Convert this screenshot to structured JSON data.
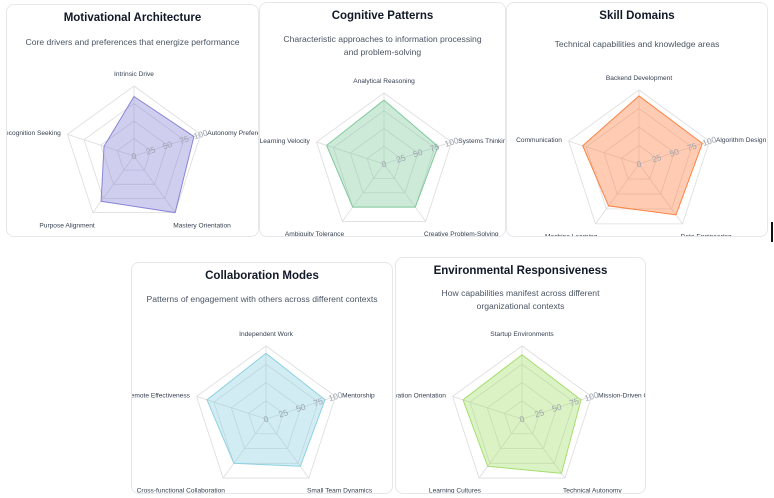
{
  "chart_data": [
    {
      "type": "radar",
      "title": "Motivational Architecture",
      "subtitle": "Core drivers and preferences that energize performance",
      "categories": [
        "Intrinsic Drive",
        "Autonomy Preference",
        "Mastery Orientation",
        "Purpose Alignment",
        "Recognition Seeking"
      ],
      "values": [
        85,
        90,
        100,
        80,
        45
      ],
      "radial_ticks": [
        "0",
        "25",
        "50",
        "75",
        "100"
      ],
      "range": [
        0,
        100
      ],
      "color": "#8884d8"
    },
    {
      "type": "radar",
      "title": "Cognitive Patterns",
      "subtitle": "Characteristic approaches to information processing and problem-solving",
      "categories": [
        "Analytical Reasoning",
        "Systems Thinking",
        "Creative Problem-Solving",
        "Ambiguity Tolerance",
        "Learning Velocity"
      ],
      "values": [
        90,
        80,
        75,
        75,
        85
      ],
      "radial_ticks": [
        "0",
        "25",
        "50",
        "75",
        "100"
      ],
      "range": [
        0,
        100
      ],
      "color": "#82ca9d"
    },
    {
      "type": "radar",
      "title": "Skill Domains",
      "subtitle": "Technical capabilities and knowledge areas",
      "categories": [
        "Backend Development",
        "Algorithm Design",
        "Data Engineering",
        "Machine Learning",
        "Communication"
      ],
      "values": [
        92,
        90,
        85,
        70,
        80
      ],
      "radial_ticks": [
        "0",
        "25",
        "50",
        "75",
        "100"
      ],
      "range": [
        0,
        100
      ],
      "color": "#ff8042"
    },
    {
      "type": "radar",
      "title": "Collaboration Modes",
      "subtitle": "Patterns of engagement with others across different contexts",
      "categories": [
        "Independent Work",
        "Mentorship",
        "Small Team Dynamics",
        "Cross-functional Collaboration",
        "Remote Effectiveness"
      ],
      "values": [
        90,
        85,
        80,
        75,
        85
      ],
      "radial_ticks": [
        "0",
        "25",
        "50",
        "75",
        "100"
      ],
      "range": [
        0,
        100
      ],
      "color": "#8dd1e1"
    },
    {
      "type": "radar",
      "title": "Environmental Responsiveness",
      "subtitle": "How capabilities manifest across different organizational contexts",
      "categories": [
        "Startup Environments",
        "Mission-Driven Cultures",
        "Technical Autonomy",
        "Learning Cultures",
        "Innovation Orientation"
      ],
      "values": [
        88,
        85,
        92,
        80,
        85
      ],
      "radial_ticks": [
        "0",
        "25",
        "50",
        "75",
        "100"
      ],
      "range": [
        0,
        100
      ],
      "color": "#a4de6c"
    }
  ]
}
